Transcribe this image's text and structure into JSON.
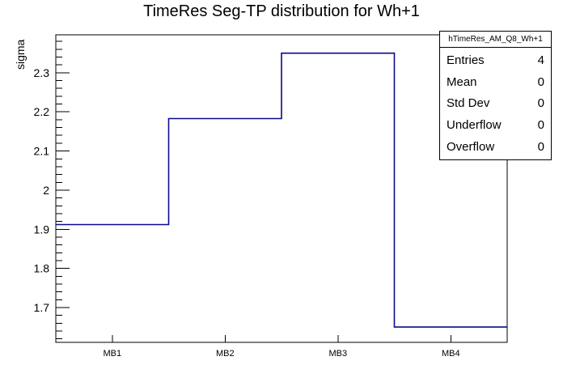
{
  "chart_data": {
    "type": "step-histogram",
    "title": "TimeRes Seg-TP distribution for Wh+1",
    "xlabel": "",
    "ylabel": "sigma",
    "categories": [
      "MB1",
      "MB2",
      "MB3",
      "MB4"
    ],
    "values": [
      1.912,
      2.183,
      2.35,
      1.65
    ],
    "ylim": [
      1.611,
      2.397
    ],
    "y_major_ticks": [
      1.7,
      1.8,
      1.9,
      2.0,
      2.1,
      2.2,
      2.3
    ],
    "y_major_tick_labels": [
      "1.7",
      "1.8",
      "1.9",
      "2",
      "2.1",
      "2.2",
      "2.3"
    ],
    "y_minor_step": 0.02,
    "grid": false,
    "legend_position": "none",
    "line_color": "#0a0a8c",
    "frame_color": "#000000",
    "background_color": "#ffffff"
  },
  "stats": {
    "title": "hTimeRes_AM_Q8_Wh+1",
    "rows": [
      {
        "label": "Entries",
        "value": "4"
      },
      {
        "label": "Mean",
        "value": "0"
      },
      {
        "label": "Std Dev",
        "value": "0"
      },
      {
        "label": "Underflow",
        "value": "0"
      },
      {
        "label": "Overflow",
        "value": "0"
      }
    ]
  }
}
